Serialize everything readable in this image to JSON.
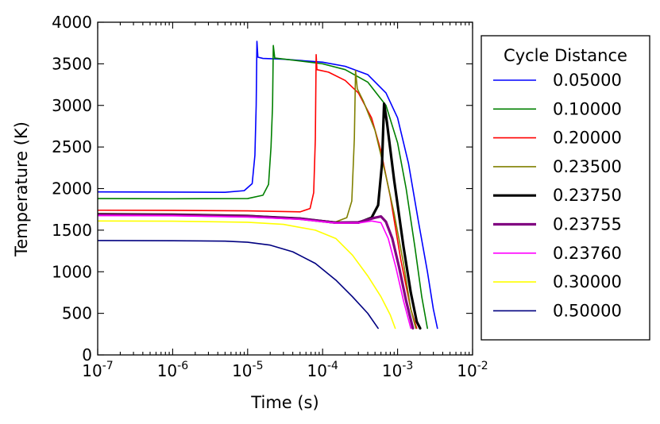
{
  "chart_data": {
    "type": "line",
    "xscale": "log",
    "xlabel": "Time (s)",
    "ylabel": "Temperature (K)",
    "xlim": [
      1e-07,
      0.01
    ],
    "ylim": [
      0,
      4000
    ],
    "x_ticks": [
      {
        "value": 1e-07,
        "base": "10",
        "exp": "-7"
      },
      {
        "value": 1e-06,
        "base": "10",
        "exp": "-6"
      },
      {
        "value": 1e-05,
        "base": "10",
        "exp": "-5"
      },
      {
        "value": 0.0001,
        "base": "10",
        "exp": "-4"
      },
      {
        "value": 0.001,
        "base": "10",
        "exp": "-3"
      },
      {
        "value": 0.01,
        "base": "10",
        "exp": "-2"
      }
    ],
    "y_ticks": [
      {
        "value": 0,
        "label": "0"
      },
      {
        "value": 500,
        "label": "500"
      },
      {
        "value": 1000,
        "label": "1000"
      },
      {
        "value": 1500,
        "label": "1500"
      },
      {
        "value": 2000,
        "label": "2000"
      },
      {
        "value": 2500,
        "label": "2500"
      },
      {
        "value": 3000,
        "label": "3000"
      },
      {
        "value": 3500,
        "label": "3500"
      },
      {
        "value": 4000,
        "label": "4000"
      }
    ],
    "legend_title": "Cycle Distance",
    "legend_position": "outside-right",
    "series": [
      {
        "name": "0.05000",
        "color": "#0000ff",
        "width": 1.6,
        "points": [
          [
            1e-07,
            1960
          ],
          [
            1e-06,
            1958
          ],
          [
            5e-06,
            1955
          ],
          [
            9e-06,
            1975
          ],
          [
            1.15e-05,
            2060
          ],
          [
            1.25e-05,
            2400
          ],
          [
            1.3e-05,
            3000
          ],
          [
            1.33e-05,
            3770
          ],
          [
            1.37e-05,
            3580
          ],
          [
            1.6e-05,
            3565
          ],
          [
            3e-05,
            3555
          ],
          [
            0.0001,
            3520
          ],
          [
            0.0002,
            3470
          ],
          [
            0.0004,
            3370
          ],
          [
            0.0007,
            3150
          ],
          [
            0.001,
            2850
          ],
          [
            0.0014,
            2300
          ],
          [
            0.0019,
            1600
          ],
          [
            0.0025,
            1000
          ],
          [
            0.003,
            550
          ],
          [
            0.0034,
            320
          ]
        ]
      },
      {
        "name": "0.10000",
        "color": "#008000",
        "width": 1.6,
        "points": [
          [
            1e-07,
            1880
          ],
          [
            1e-06,
            1878
          ],
          [
            1e-05,
            1880
          ],
          [
            1.6e-05,
            1920
          ],
          [
            1.9e-05,
            2050
          ],
          [
            2.05e-05,
            2500
          ],
          [
            2.15e-05,
            3000
          ],
          [
            2.2e-05,
            3720
          ],
          [
            2.3e-05,
            3570
          ],
          [
            4e-05,
            3545
          ],
          [
            0.0001,
            3500
          ],
          [
            0.0002,
            3430
          ],
          [
            0.0004,
            3280
          ],
          [
            0.0007,
            3000
          ],
          [
            0.001,
            2550
          ],
          [
            0.0013,
            2000
          ],
          [
            0.0017,
            1300
          ],
          [
            0.0021,
            700
          ],
          [
            0.0025,
            320
          ]
        ]
      },
      {
        "name": "0.20000",
        "color": "#ff0000",
        "width": 1.6,
        "points": [
          [
            1e-07,
            1740
          ],
          [
            1e-06,
            1738
          ],
          [
            1e-05,
            1732
          ],
          [
            5e-05,
            1720
          ],
          [
            6.8e-05,
            1760
          ],
          [
            7.6e-05,
            1950
          ],
          [
            8e-05,
            2600
          ],
          [
            8.2e-05,
            3610
          ],
          [
            8.4e-05,
            3430
          ],
          [
            0.00012,
            3400
          ],
          [
            0.0002,
            3300
          ],
          [
            0.0003,
            3150
          ],
          [
            0.00045,
            2850
          ],
          [
            0.0006,
            2450
          ],
          [
            0.0008,
            1900
          ],
          [
            0.0011,
            1150
          ],
          [
            0.0015,
            550
          ],
          [
            0.0018,
            320
          ]
        ]
      },
      {
        "name": "0.23500",
        "color": "#808000",
        "width": 1.6,
        "points": [
          [
            1e-07,
            1700
          ],
          [
            1e-06,
            1695
          ],
          [
            1e-05,
            1680
          ],
          [
            5e-05,
            1640
          ],
          [
            0.00015,
            1600
          ],
          [
            0.00021,
            1650
          ],
          [
            0.000245,
            1850
          ],
          [
            0.000265,
            2600
          ],
          [
            0.000275,
            3420
          ],
          [
            0.00029,
            3200
          ],
          [
            0.00035,
            3050
          ],
          [
            0.0005,
            2700
          ],
          [
            0.0007,
            2150
          ],
          [
            0.0009,
            1700
          ],
          [
            0.0012,
            1100
          ],
          [
            0.0015,
            550
          ],
          [
            0.00175,
            320
          ]
        ]
      },
      {
        "name": "0.23750",
        "color": "#000000",
        "width": 3.2,
        "points": [
          [
            1e-07,
            1690
          ],
          [
            1e-06,
            1685
          ],
          [
            1e-05,
            1670
          ],
          [
            5e-05,
            1640
          ],
          [
            0.00015,
            1590
          ],
          [
            0.0003,
            1590
          ],
          [
            0.00045,
            1650
          ],
          [
            0.00055,
            1800
          ],
          [
            0.00062,
            2300
          ],
          [
            0.00066,
            3020
          ],
          [
            0.00072,
            2800
          ],
          [
            0.0009,
            2100
          ],
          [
            0.0012,
            1300
          ],
          [
            0.0015,
            750
          ],
          [
            0.0018,
            400
          ],
          [
            0.002,
            320
          ]
        ]
      },
      {
        "name": "0.23755",
        "color": "#800080",
        "width": 3.2,
        "points": [
          [
            1e-07,
            1685
          ],
          [
            1e-06,
            1682
          ],
          [
            1e-05,
            1667
          ],
          [
            5e-05,
            1637
          ],
          [
            0.00015,
            1590
          ],
          [
            0.0003,
            1595
          ],
          [
            0.0005,
            1650
          ],
          [
            0.0006,
            1665
          ],
          [
            0.0007,
            1600
          ],
          [
            0.00085,
            1400
          ],
          [
            0.00105,
            1050
          ],
          [
            0.0013,
            650
          ],
          [
            0.0016,
            320
          ]
        ]
      },
      {
        "name": "0.23760",
        "color": "#ff00ff",
        "width": 1.6,
        "points": [
          [
            1e-07,
            1675
          ],
          [
            1e-06,
            1672
          ],
          [
            1e-05,
            1657
          ],
          [
            5e-05,
            1630
          ],
          [
            0.00015,
            1585
          ],
          [
            0.0003,
            1585
          ],
          [
            0.00045,
            1610
          ],
          [
            0.0006,
            1590
          ],
          [
            0.00075,
            1400
          ],
          [
            0.00095,
            1050
          ],
          [
            0.0012,
            650
          ],
          [
            0.0015,
            320
          ]
        ]
      },
      {
        "name": "0.30000",
        "color": "#ffff00",
        "width": 1.6,
        "points": [
          [
            1e-07,
            1610
          ],
          [
            1e-06,
            1608
          ],
          [
            1e-05,
            1595
          ],
          [
            3e-05,
            1570
          ],
          [
            8e-05,
            1500
          ],
          [
            0.00015,
            1400
          ],
          [
            0.00025,
            1200
          ],
          [
            0.0004,
            950
          ],
          [
            0.0006,
            700
          ],
          [
            0.0008,
            480
          ],
          [
            0.00093,
            320
          ]
        ]
      },
      {
        "name": "0.50000",
        "color": "#000080",
        "width": 1.6,
        "points": [
          [
            1e-07,
            1375
          ],
          [
            1e-06,
            1373
          ],
          [
            5e-06,
            1368
          ],
          [
            1e-05,
            1355
          ],
          [
            2e-05,
            1320
          ],
          [
            4e-05,
            1240
          ],
          [
            8e-05,
            1100
          ],
          [
            0.00015,
            900
          ],
          [
            0.00025,
            700
          ],
          [
            0.0004,
            500
          ],
          [
            0.00055,
            320
          ]
        ]
      }
    ]
  }
}
